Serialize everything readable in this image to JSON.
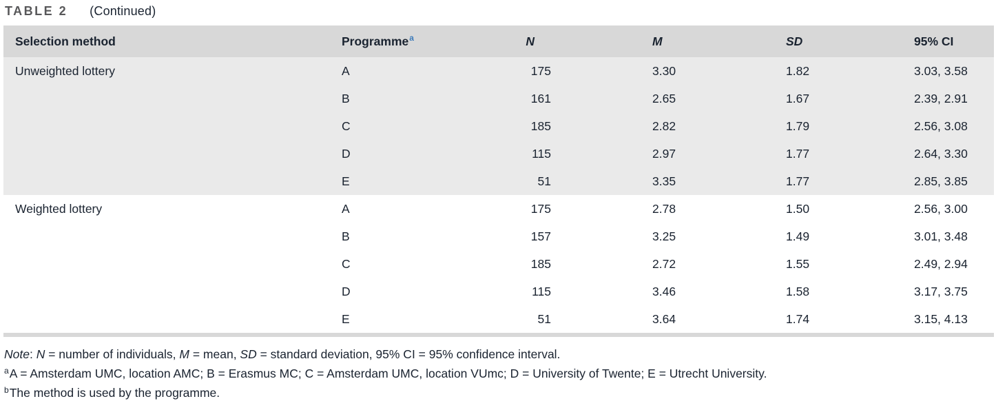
{
  "title": {
    "label": "TABLE 2",
    "continued": "(Continued)"
  },
  "table": {
    "columns": [
      {
        "label": "Selection method"
      },
      {
        "label": "Programme",
        "sup": "a"
      },
      {
        "label": "N"
      },
      {
        "label": "M"
      },
      {
        "label": "SD"
      },
      {
        "label": "95% CI"
      }
    ],
    "sections": [
      {
        "method": "Unweighted lottery",
        "shaded": true,
        "rows": [
          {
            "programme": "A",
            "n": "175",
            "m": "3.30",
            "sd": "1.82",
            "ci": "3.03, 3.58"
          },
          {
            "programme": "B",
            "n": "161",
            "m": "2.65",
            "sd": "1.67",
            "ci": "2.39, 2.91"
          },
          {
            "programme": "C",
            "n": "185",
            "m": "2.82",
            "sd": "1.79",
            "ci": "2.56, 3.08"
          },
          {
            "programme": "D",
            "n": "115",
            "m": "2.97",
            "sd": "1.77",
            "ci": "2.64, 3.30"
          },
          {
            "programme": "E",
            "n": "51",
            "m": "3.35",
            "sd": "1.77",
            "ci": "2.85, 3.85"
          }
        ]
      },
      {
        "method": "Weighted lottery",
        "shaded": false,
        "rows": [
          {
            "programme": "A",
            "n": "175",
            "m": "2.78",
            "sd": "1.50",
            "ci": "2.56, 3.00"
          },
          {
            "programme": "B",
            "n": "157",
            "m": "3.25",
            "sd": "1.49",
            "ci": "3.01, 3.48"
          },
          {
            "programme": "C",
            "n": "185",
            "m": "2.72",
            "sd": "1.55",
            "ci": "2.49, 2.94"
          },
          {
            "programme": "D",
            "n": "115",
            "m": "3.46",
            "sd": "1.58",
            "ci": "3.17, 3.75"
          },
          {
            "programme": "E",
            "n": "51",
            "m": "3.64",
            "sd": "1.74",
            "ci": "3.15, 4.13"
          }
        ]
      }
    ]
  },
  "footnotes": {
    "note_segments": [
      {
        "text": "Note",
        "italic": true
      },
      {
        "text": ": "
      },
      {
        "text": "N",
        "italic": true
      },
      {
        "text": " = number of individuals, "
      },
      {
        "text": "M",
        "italic": true
      },
      {
        "text": " = mean, "
      },
      {
        "text": "SD",
        "italic": true
      },
      {
        "text": " = standard deviation, 95% CI = 95% confidence interval."
      }
    ],
    "a": {
      "sup": "a",
      "text": "A = Amsterdam UMC, location AMC; B = Erasmus MC; C = Amsterdam UMC, location VUmc; D = University of Twente; E = Utrecht University."
    },
    "b": {
      "sup": "b",
      "text": "The method is used by the programme."
    }
  },
  "colors": {
    "header_bg": "#d8d8d8",
    "section_shaded_bg": "#eaeaea",
    "section_plain_bg": "#ffffff",
    "bottom_rule": "#d8d8d8",
    "superscript_blue": "#3f7cba",
    "title_color": "#58585a",
    "text_color": "#1a2330"
  }
}
